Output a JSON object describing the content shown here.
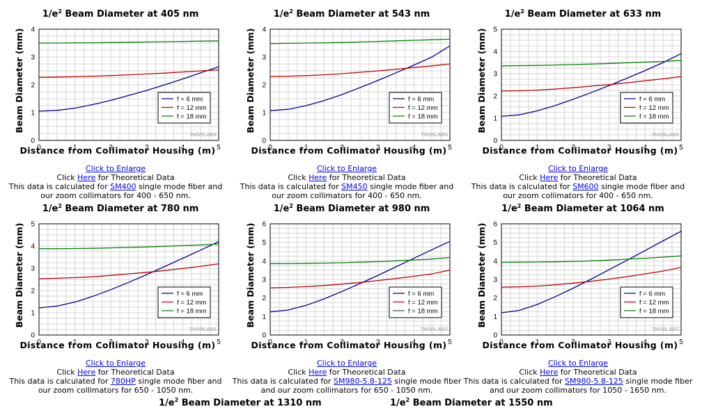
{
  "panels": [
    {
      "title_prefix": "1/e",
      "title_sup": "2",
      "title_suffix": " Beam Diameter at 405 nm",
      "ylabel": "Beam Diameter (mm)",
      "xlabel": "Distance from Collimator Housing (m)",
      "logo": "THORLABS",
      "enlarge_label": "Click to Enlarge",
      "theory_pre": "Click ",
      "theory_link": "Here",
      "theory_post": " for Theoretical Data",
      "calc_pre": "This data is calculated for ",
      "fiber_link": "SM400",
      "calc_post": " single mode fiber and",
      "range_text": "our zoom collimators for 400 - 650 nm.",
      "chart_data": {
        "type": "line",
        "xlim": [
          0,
          5
        ],
        "ylim": [
          0,
          4
        ],
        "xticks": [
          "0",
          "1",
          "2",
          "3",
          "4",
          "5"
        ],
        "yticks": [
          "0",
          "1",
          "2",
          "3",
          "4"
        ],
        "legend_placement": "bottom-right",
        "grid": true,
        "x": [
          0,
          0.5,
          1,
          1.5,
          2,
          2.5,
          3,
          3.5,
          4,
          4.5,
          5
        ],
        "series": [
          {
            "name": "f = 6 mm",
            "color": "#00008b",
            "values": [
              1.05,
              1.08,
              1.16,
              1.29,
              1.44,
              1.62,
              1.8,
              2.0,
              2.21,
              2.43,
              2.65
            ]
          },
          {
            "name": "f = 12 mm",
            "color": "#c00000",
            "values": [
              2.27,
              2.28,
              2.29,
              2.31,
              2.33,
              2.36,
              2.39,
              2.42,
              2.46,
              2.5,
              2.54
            ]
          },
          {
            "name": "f = 18 mm",
            "color": "#008000",
            "values": [
              3.5,
              3.5,
              3.51,
              3.51,
              3.52,
              3.53,
              3.54,
              3.55,
              3.56,
              3.57,
              3.58
            ]
          }
        ]
      }
    },
    {
      "title_prefix": "1/e",
      "title_sup": "2",
      "title_suffix": " Beam Diameter at 543 nm",
      "ylabel": "Beam Diameter (mm)",
      "xlabel": "Distance from Collimator Housing (m)",
      "logo": "THORLABS",
      "enlarge_label": "Click to Enlarge",
      "theory_pre": "Click ",
      "theory_link": "Here",
      "theory_post": " for Theoretical Data",
      "calc_pre": "This data is calculated for ",
      "fiber_link": "SM450",
      "calc_post": " single mode fiber and",
      "range_text": "our zoom collimators for 400 - 650 nm.",
      "chart_data": {
        "type": "line",
        "xlim": [
          0,
          5
        ],
        "ylim": [
          0,
          4
        ],
        "xticks": [
          "0",
          "1",
          "2",
          "3",
          "4",
          "5"
        ],
        "yticks": [
          "0",
          "1",
          "2",
          "3",
          "4"
        ],
        "legend_placement": "bottom-right",
        "grid": true,
        "x": [
          0,
          0.5,
          1,
          1.5,
          2,
          2.5,
          3,
          3.5,
          4,
          4.5,
          5
        ],
        "series": [
          {
            "name": "f = 6 mm",
            "color": "#00008b",
            "values": [
              1.07,
              1.12,
              1.25,
              1.43,
              1.65,
              1.9,
              2.16,
              2.43,
              2.71,
              3.0,
              3.4
            ]
          },
          {
            "name": "f = 12 mm",
            "color": "#c00000",
            "values": [
              2.3,
              2.31,
              2.33,
              2.36,
              2.4,
              2.45,
              2.5,
              2.56,
              2.62,
              2.68,
              2.75
            ]
          },
          {
            "name": "f = 18 mm",
            "color": "#008000",
            "values": [
              3.48,
              3.49,
              3.5,
              3.51,
              3.52,
              3.54,
              3.56,
              3.58,
              3.6,
              3.62,
              3.64
            ]
          }
        ]
      }
    },
    {
      "title_prefix": "1/e",
      "title_sup": "2",
      "title_suffix": " Beam Diameter at 633 nm",
      "ylabel": "Beam Diameter (mm)",
      "xlabel": "Distance from Collimator Housing (m)",
      "logo": "THORLABS",
      "enlarge_label": "Click to Enlarge",
      "theory_pre": "Click ",
      "theory_link": "Here",
      "theory_post": " for Theoretical Data",
      "calc_pre": "This data is calculated for ",
      "fiber_link": "SM600",
      "calc_post": " single mode fiber and",
      "range_text": "our zoom collimators for 400 - 650 nm.",
      "chart_data": {
        "type": "line",
        "xlim": [
          0,
          5
        ],
        "ylim": [
          0,
          5
        ],
        "xticks": [
          "0",
          "1",
          "2",
          "3",
          "4",
          "5"
        ],
        "yticks": [
          "0",
          "1",
          "2",
          "3",
          "4",
          "5"
        ],
        "legend_placement": "bottom-right",
        "grid": true,
        "x": [
          0,
          0.5,
          1,
          1.5,
          2,
          2.5,
          3,
          3.5,
          4,
          4.5,
          5
        ],
        "series": [
          {
            "name": "f = 6 mm",
            "color": "#00008b",
            "values": [
              1.08,
              1.15,
              1.33,
              1.57,
              1.85,
              2.15,
              2.47,
              2.8,
              3.14,
              3.5,
              3.9
            ]
          },
          {
            "name": "f = 12 mm",
            "color": "#c00000",
            "values": [
              2.22,
              2.23,
              2.26,
              2.31,
              2.37,
              2.44,
              2.51,
              2.59,
              2.68,
              2.77,
              2.87
            ]
          },
          {
            "name": "f = 18 mm",
            "color": "#008000",
            "values": [
              3.35,
              3.36,
              3.37,
              3.39,
              3.41,
              3.43,
              3.46,
              3.49,
              3.52,
              3.55,
              3.6
            ]
          }
        ]
      }
    },
    {
      "title_prefix": "1/e",
      "title_sup": "2",
      "title_suffix": " Beam Diameter at 780 nm",
      "ylabel": "Beam Diameter (mm)",
      "xlabel": "Distance from Collimator Housing (m)",
      "logo": "THORLABS",
      "enlarge_label": "Click to Enlarge",
      "theory_pre": "Click ",
      "theory_link": "Here",
      "theory_post": " for Theoretical Data",
      "calc_pre": "This data is calculated for ",
      "fiber_link": "780HP",
      "calc_post": " single mode fiber and",
      "range_text": "our zoom collimators for 650 - 1050 nm.",
      "chart_data": {
        "type": "line",
        "xlim": [
          0,
          5
        ],
        "ylim": [
          0,
          5
        ],
        "xticks": [
          "0",
          "1",
          "2",
          "3",
          "4",
          "5"
        ],
        "yticks": [
          "0",
          "1",
          "2",
          "3",
          "4",
          "5"
        ],
        "legend_placement": "bottom-right",
        "grid": true,
        "x": [
          0,
          0.5,
          1,
          1.5,
          2,
          2.5,
          3,
          3.5,
          4,
          4.5,
          5
        ],
        "series": [
          {
            "name": "f = 6 mm",
            "color": "#00008b",
            "values": [
              1.22,
              1.3,
              1.48,
              1.74,
              2.04,
              2.37,
              2.72,
              3.08,
              3.45,
              3.82,
              4.2
            ]
          },
          {
            "name": "f = 12 mm",
            "color": "#c00000",
            "values": [
              2.53,
              2.55,
              2.58,
              2.62,
              2.68,
              2.75,
              2.82,
              2.9,
              2.99,
              3.09,
              3.2
            ]
          },
          {
            "name": "f = 18 mm",
            "color": "#008000",
            "values": [
              3.88,
              3.88,
              3.89,
              3.9,
              3.92,
              3.94,
              3.96,
              3.99,
              4.02,
              4.05,
              4.09
            ]
          }
        ]
      }
    },
    {
      "title_prefix": "1/e",
      "title_sup": "2",
      "title_suffix": " Beam Diameter at 980 nm",
      "ylabel": "Beam Diameter (mm)",
      "xlabel": "Distance from Collimator Housing (m)",
      "logo": "THORLABS",
      "enlarge_label": "Click to Enlarge",
      "theory_pre": "Click ",
      "theory_link": "Here",
      "theory_post": " for Theoretical Data",
      "calc_pre": "This data is calculated for ",
      "fiber_link": "SM980-5.8-125",
      "calc_post": " single mode fiber",
      "range_text": "and our zoom collimators for 650 - 1050 nm.",
      "chart_data": {
        "type": "line",
        "xlim": [
          0,
          5
        ],
        "ylim": [
          0,
          6
        ],
        "xticks": [
          "0",
          "1",
          "2",
          "3",
          "4",
          "5"
        ],
        "yticks": [
          "0",
          "1",
          "2",
          "3",
          "4",
          "5",
          "6"
        ],
        "legend_placement": "bottom-right",
        "grid": true,
        "x": [
          0,
          0.5,
          1,
          1.5,
          2,
          2.5,
          3,
          3.5,
          4,
          4.5,
          5
        ],
        "series": [
          {
            "name": "f = 6 mm",
            "color": "#00008b",
            "values": [
              1.25,
              1.35,
              1.6,
              1.95,
              2.35,
              2.78,
              3.22,
              3.68,
              4.14,
              4.6,
              5.05
            ]
          },
          {
            "name": "f = 12 mm",
            "color": "#c00000",
            "values": [
              2.55,
              2.57,
              2.61,
              2.67,
              2.75,
              2.84,
              2.94,
              3.05,
              3.17,
              3.3,
              3.5
            ]
          },
          {
            "name": "f = 18 mm",
            "color": "#008000",
            "values": [
              3.85,
              3.86,
              3.87,
              3.88,
              3.9,
              3.93,
              3.96,
              4.0,
              4.05,
              4.1,
              4.18
            ]
          }
        ]
      }
    },
    {
      "title_prefix": "1/e",
      "title_sup": "2",
      "title_suffix": " Beam Diameter at 1064 nm",
      "ylabel": "Beam Diameter (mm)",
      "xlabel": "Distance from Collimator Housing (m)",
      "logo": "THORLABS",
      "enlarge_label": "Click to Enlarge",
      "theory_pre": "Click ",
      "theory_link": "Here",
      "theory_post": " for Theoretical Data",
      "calc_pre": "This data is calculated for ",
      "fiber_link": "SM980-5.8-125",
      "calc_post": " single mode fiber",
      "range_text": "and our zoom collimators for 1050 - 1650 nm.",
      "chart_data": {
        "type": "line",
        "xlim": [
          0,
          5
        ],
        "ylim": [
          0,
          6
        ],
        "xticks": [
          "0",
          "1",
          "2",
          "3",
          "4",
          "5"
        ],
        "yticks": [
          "0",
          "1",
          "2",
          "3",
          "4",
          "5",
          "6"
        ],
        "legend_placement": "bottom-right",
        "grid": true,
        "x": [
          0,
          0.5,
          1,
          1.5,
          2,
          2.5,
          3,
          3.5,
          4,
          4.5,
          5
        ],
        "series": [
          {
            "name": "f = 6 mm",
            "color": "#00008b",
            "values": [
              1.2,
              1.33,
              1.65,
              2.07,
              2.53,
              3.02,
              3.53,
              4.04,
              4.56,
              5.08,
              5.6
            ]
          },
          {
            "name": "f = 12 mm",
            "color": "#c00000",
            "values": [
              2.58,
              2.6,
              2.64,
              2.71,
              2.8,
              2.9,
              3.02,
              3.15,
              3.3,
              3.45,
              3.65
            ]
          },
          {
            "name": "f = 18 mm",
            "color": "#008000",
            "values": [
              3.92,
              3.93,
              3.94,
              3.95,
              3.97,
              4.0,
              4.04,
              4.09,
              4.14,
              4.2,
              4.27
            ]
          }
        ]
      }
    }
  ],
  "bottom_titles": [
    {
      "prefix": "1/e",
      "sup": "2",
      "suffix": " Beam Diameter at 1310 nm"
    },
    {
      "prefix": "1/e",
      "sup": "2",
      "suffix": " Beam Diameter at 1550 nm"
    }
  ]
}
